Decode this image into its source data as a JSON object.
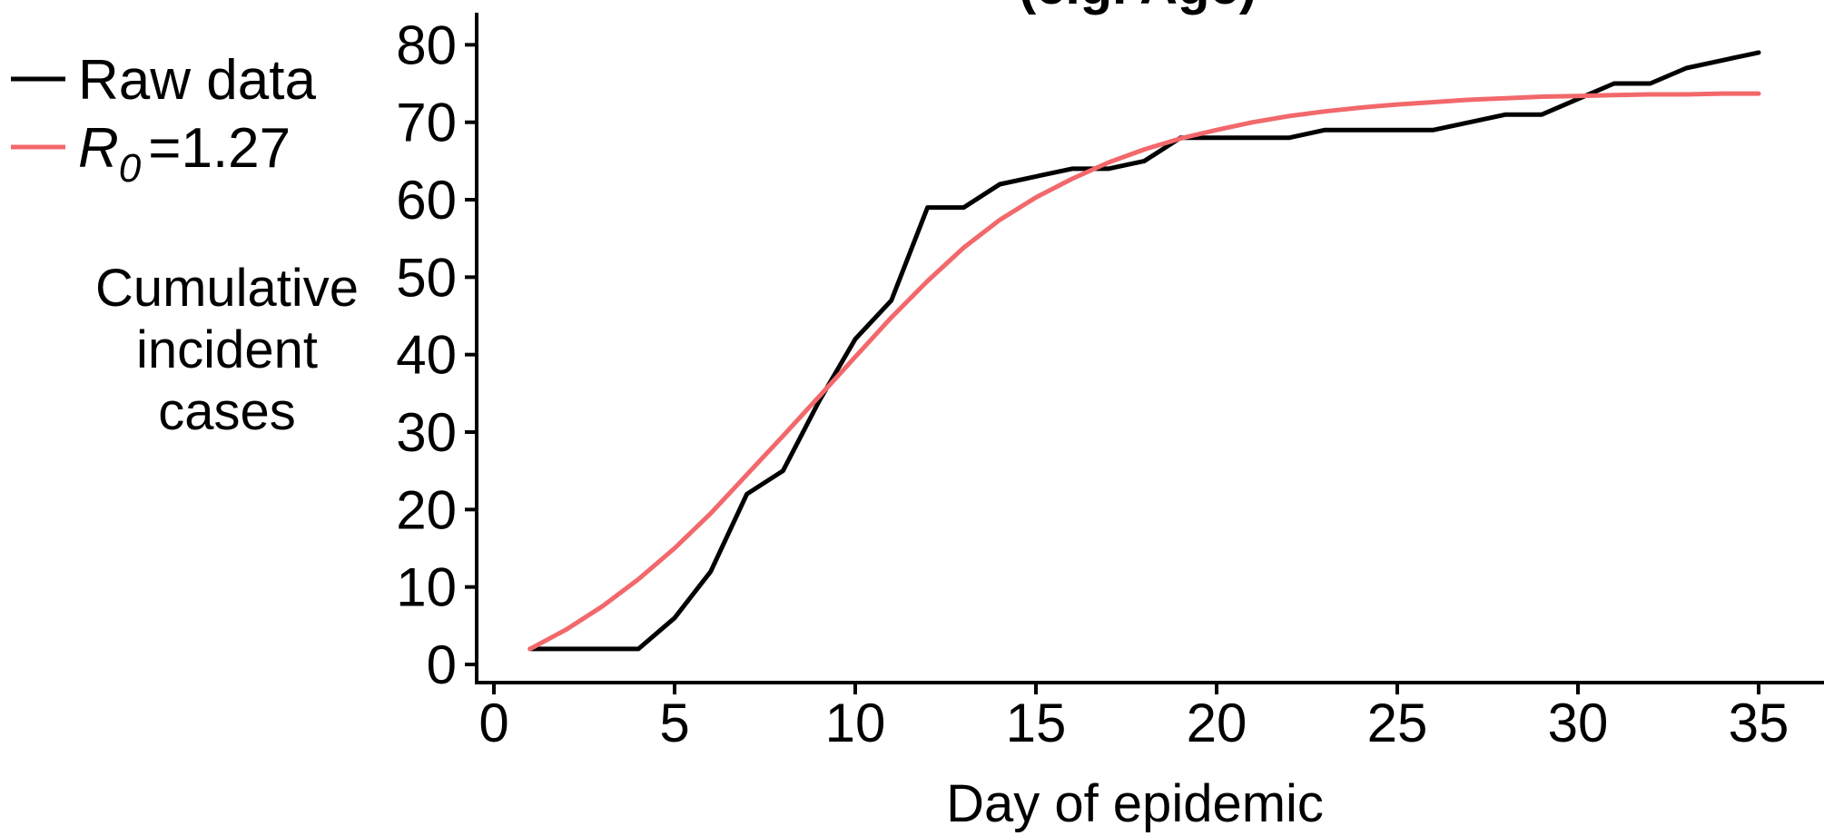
{
  "chart_data": {
    "type": "line",
    "title": "(e.g. Age)",
    "xlabel": "Day of epidemic",
    "ylabel_lines": [
      "Cumulative",
      "incident",
      "cases"
    ],
    "xlim": [
      0,
      36
    ],
    "ylim": [
      -3,
      84
    ],
    "xticks": [
      0,
      5,
      10,
      15,
      20,
      25,
      30,
      35
    ],
    "yticks": [
      0,
      10,
      20,
      30,
      40,
      50,
      60,
      70,
      80
    ],
    "grid": false,
    "legend_position": "top-left",
    "legend": [
      {
        "label": "Raw data",
        "color": "#000000"
      },
      {
        "label_symbol": "R",
        "label_subscript": "0",
        "label_value": "=1.27",
        "color": "#f2686b"
      }
    ],
    "x": [
      1,
      2,
      3,
      4,
      5,
      6,
      7,
      8,
      9,
      10,
      11,
      12,
      13,
      14,
      15,
      16,
      17,
      18,
      19,
      20,
      21,
      22,
      23,
      24,
      25,
      26,
      27,
      28,
      29,
      30,
      31,
      32,
      33,
      34,
      35
    ],
    "series": [
      {
        "name": "Raw data",
        "color": "#000000",
        "values": [
          2,
          2,
          2,
          2,
          6,
          12,
          22,
          25,
          34,
          42,
          47,
          59,
          59,
          62,
          63,
          64,
          64,
          65,
          68,
          68,
          68,
          68,
          69,
          69,
          69,
          69,
          70,
          71,
          71,
          73,
          75,
          75,
          77,
          78,
          79
        ]
      },
      {
        "name": "R0=1.27",
        "color": "#f2686b",
        "values": [
          2.0,
          4.5,
          7.5,
          11,
          15,
          19.5,
          24.5,
          29.5,
          34.6,
          39.7,
          44.8,
          49.5,
          53.8,
          57.4,
          60.3,
          62.7,
          64.8,
          66.5,
          67.9,
          69.0,
          70.0,
          70.8,
          71.4,
          71.9,
          72.3,
          72.6,
          72.9,
          73.1,
          73.3,
          73.4,
          73.5,
          73.6,
          73.6,
          73.7,
          73.7
        ]
      }
    ]
  }
}
